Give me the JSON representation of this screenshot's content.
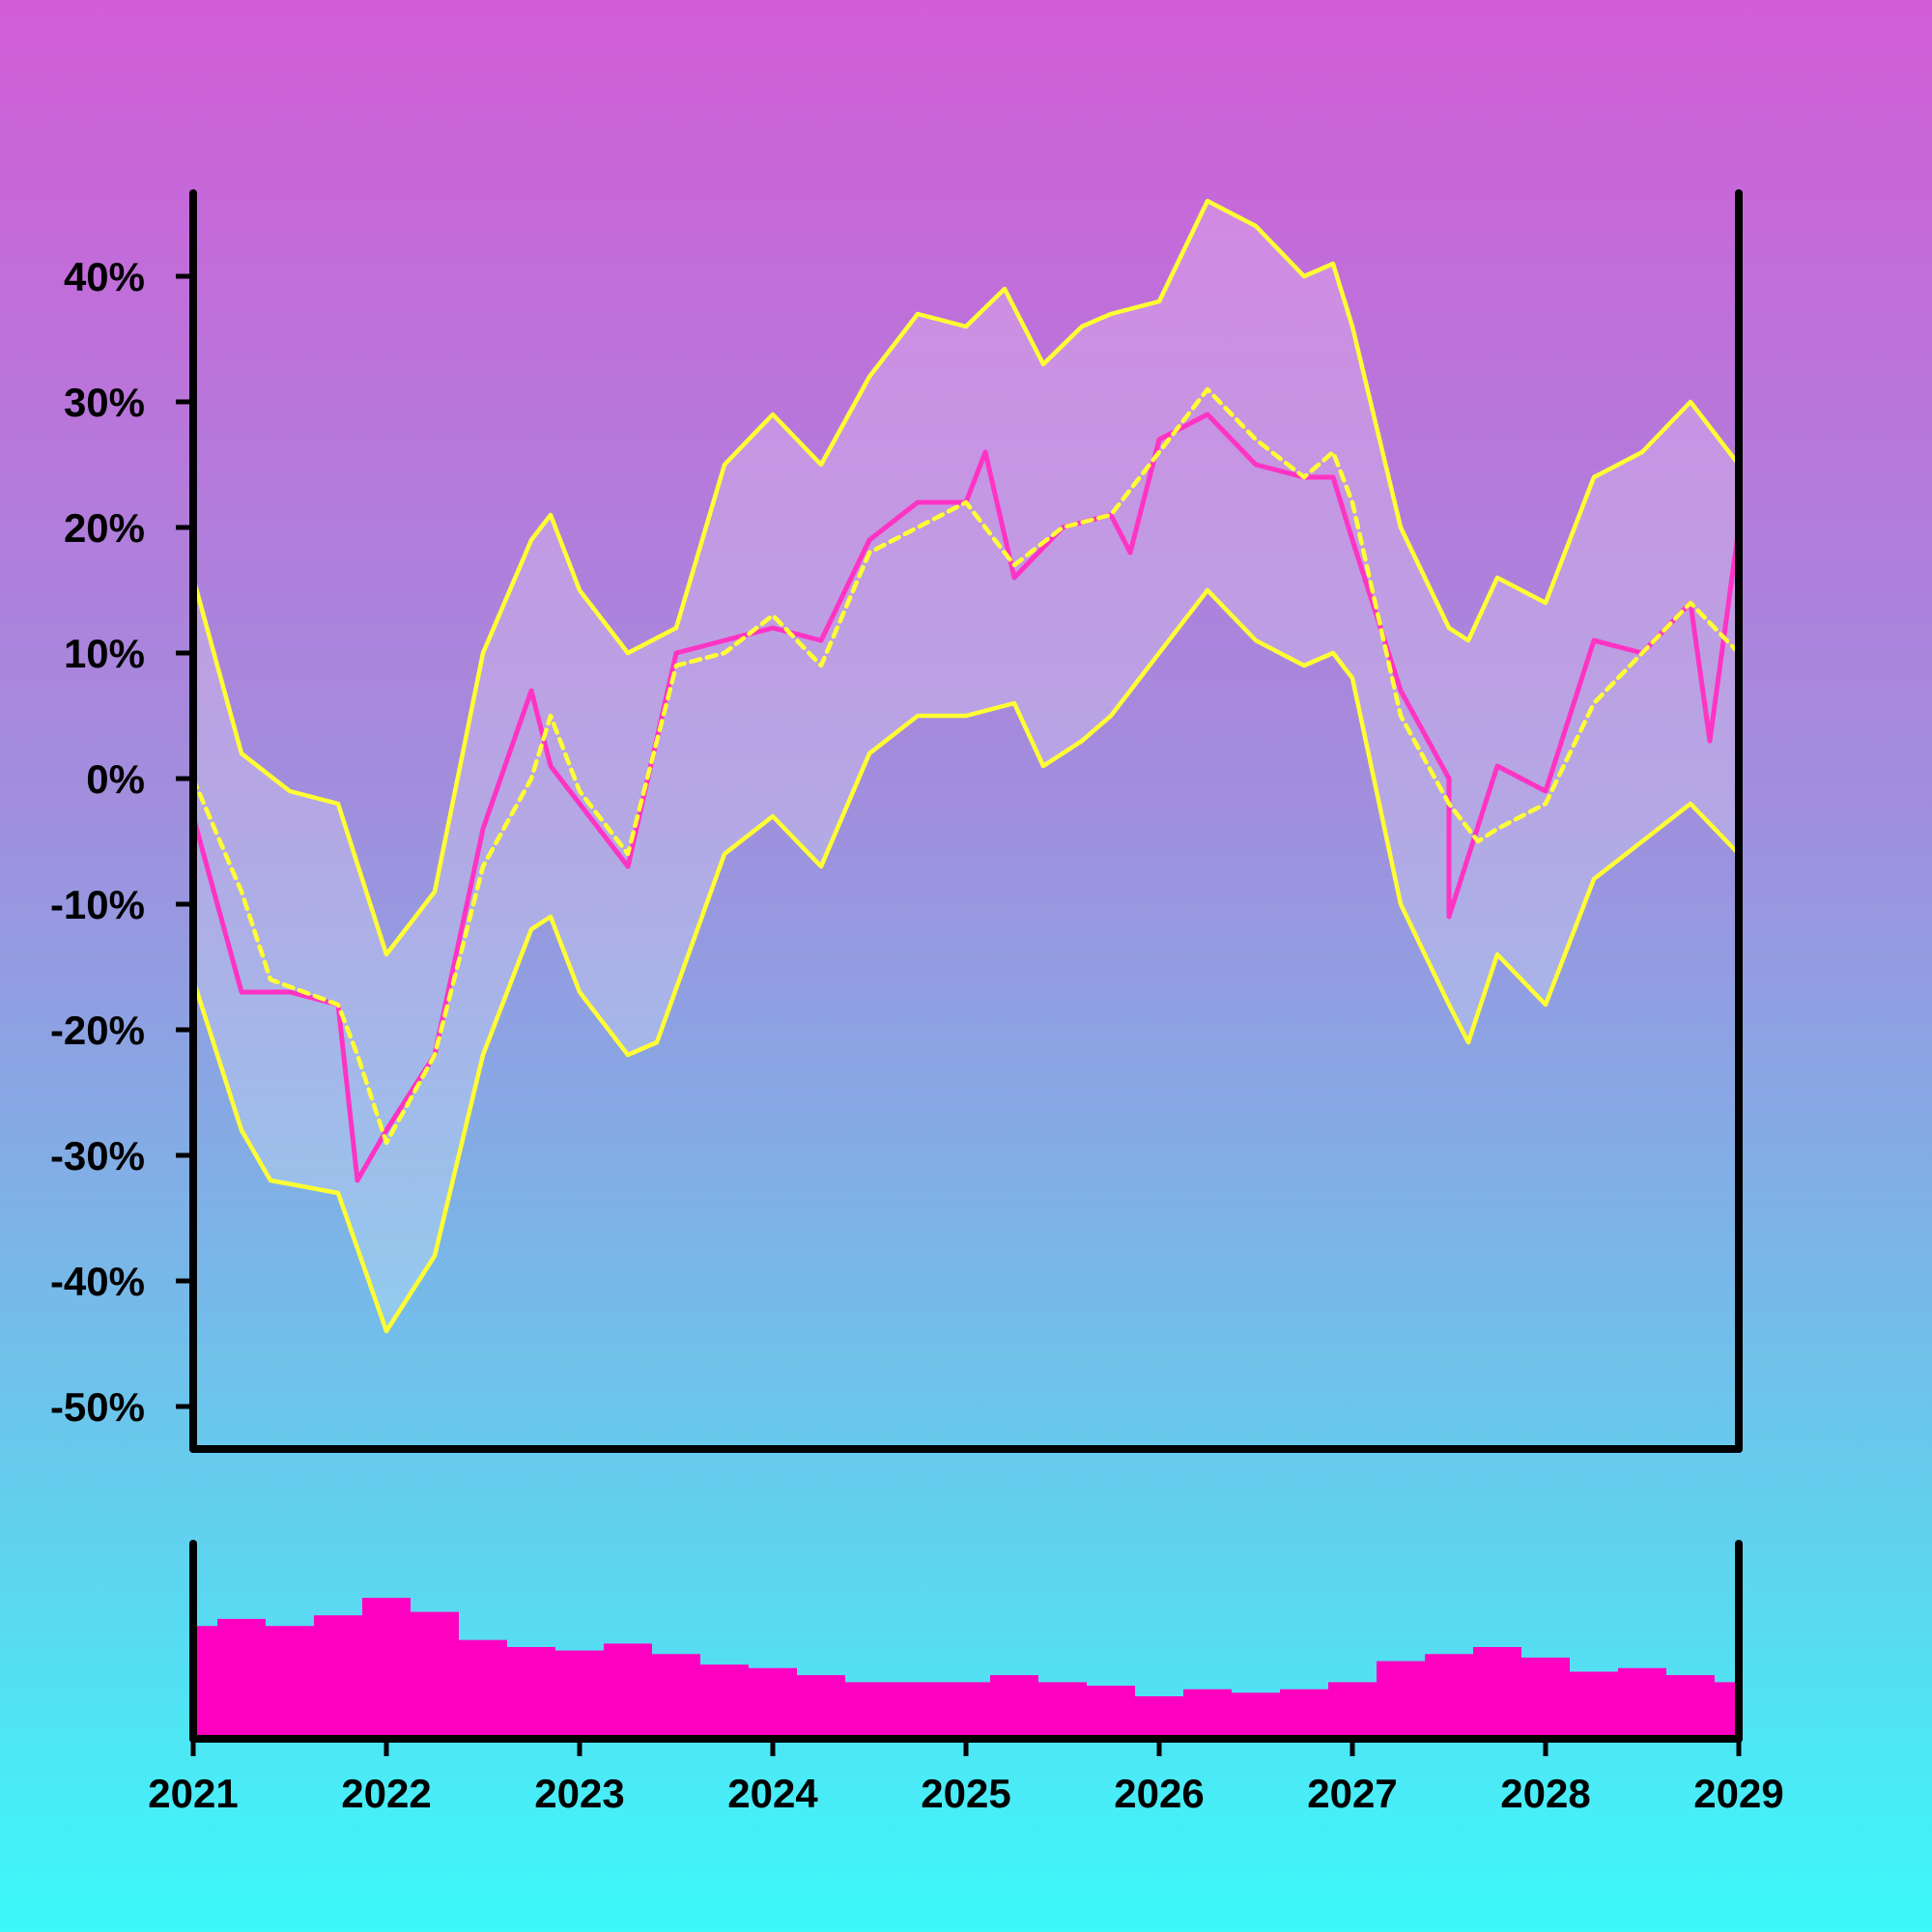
{
  "chart_data": [
    {
      "type": "line",
      "ylim": [
        -55,
        47
      ],
      "yticks": [
        -50,
        -40,
        -30,
        -20,
        -10,
        0,
        10,
        20,
        30,
        40
      ],
      "ytick_labels": [
        "-50%",
        "-40%",
        "-30%",
        "-20%",
        "-10%",
        "0%",
        "10%",
        "20%",
        "30%",
        "40%"
      ],
      "xlim": [
        2021,
        2029
      ],
      "grid": false,
      "legend": "none",
      "colors": {
        "price": "#ff33c4",
        "bands": "#ffff33",
        "band_fill": "#ffffff"
      },
      "series": [
        {
          "role": "price",
          "style": "solid",
          "x": [
            2021.0,
            2021.25,
            2021.5,
            2021.75,
            2021.85,
            2022.0,
            2022.25,
            2022.5,
            2022.75,
            2022.85,
            2023.0,
            2023.25,
            2023.5,
            2023.75,
            2024.0,
            2024.25,
            2024.5,
            2024.75,
            2025.0,
            2025.1,
            2025.25,
            2025.5,
            2025.75,
            2025.85,
            2026.0,
            2026.25,
            2026.5,
            2026.75,
            2026.9,
            2027.0,
            2027.25,
            2027.5,
            2027.5,
            2027.75,
            2028.0,
            2028.25,
            2028.5,
            2028.75,
            2028.85,
            2029.0
          ],
          "y": [
            -3,
            -17,
            -17,
            -18,
            -32,
            -28,
            -22,
            -4,
            7,
            1,
            -2,
            -7,
            10,
            11,
            12,
            11,
            19,
            22,
            22,
            26,
            16,
            20,
            21,
            18,
            27,
            29,
            25,
            24,
            24,
            19,
            7,
            0,
            -11,
            1,
            -1,
            11,
            10,
            14,
            3,
            20
          ]
        },
        {
          "role": "moving-average",
          "style": "dashed",
          "x": [
            2021.0,
            2021.25,
            2021.4,
            2021.75,
            2021.85,
            2022.0,
            2022.25,
            2022.5,
            2022.75,
            2022.85,
            2023.0,
            2023.25,
            2023.5,
            2023.75,
            2024.0,
            2024.25,
            2024.5,
            2024.75,
            2025.0,
            2025.25,
            2025.5,
            2025.75,
            2026.0,
            2026.25,
            2026.5,
            2026.75,
            2026.9,
            2027.0,
            2027.25,
            2027.5,
            2027.65,
            2027.75,
            2028.0,
            2028.25,
            2028.5,
            2028.75,
            2029.0
          ],
          "y": [
            0,
            -9,
            -16,
            -18,
            -22,
            -29,
            -22,
            -7,
            0,
            5,
            -1,
            -6,
            9,
            10,
            13,
            9,
            18,
            20,
            22,
            17,
            20,
            21,
            26,
            31,
            27,
            24,
            26,
            22,
            5,
            -2,
            -5,
            -4,
            -2,
            6,
            10,
            14,
            10
          ]
        },
        {
          "role": "upper-band",
          "style": "solid",
          "x": [
            2021.0,
            2021.25,
            2021.5,
            2021.75,
            2022.0,
            2022.25,
            2022.5,
            2022.75,
            2022.85,
            2023.0,
            2023.25,
            2023.5,
            2023.75,
            2024.0,
            2024.25,
            2024.5,
            2024.75,
            2025.0,
            2025.2,
            2025.4,
            2025.6,
            2025.75,
            2026.0,
            2026.25,
            2026.5,
            2026.75,
            2026.9,
            2027.0,
            2027.25,
            2027.5,
            2027.6,
            2027.75,
            2028.0,
            2028.25,
            2028.5,
            2028.75,
            2029.0
          ],
          "y": [
            16,
            2,
            -1,
            -2,
            -14,
            -9,
            10,
            19,
            21,
            15,
            10,
            12,
            25,
            29,
            25,
            32,
            37,
            36,
            39,
            33,
            36,
            37,
            38,
            46,
            44,
            40,
            41,
            36,
            20,
            12,
            11,
            16,
            14,
            24,
            26,
            30,
            25
          ]
        },
        {
          "role": "lower-band",
          "style": "solid",
          "x": [
            2021.0,
            2021.25,
            2021.4,
            2021.75,
            2022.0,
            2022.25,
            2022.5,
            2022.75,
            2022.85,
            2023.0,
            2023.25,
            2023.4,
            2023.75,
            2024.0,
            2024.25,
            2024.5,
            2024.75,
            2025.0,
            2025.25,
            2025.4,
            2025.6,
            2025.75,
            2026.0,
            2026.25,
            2026.5,
            2026.75,
            2026.9,
            2027.0,
            2027.25,
            2027.5,
            2027.6,
            2027.75,
            2028.0,
            2028.25,
            2028.5,
            2028.75,
            2029.0
          ],
          "y": [
            -16,
            -28,
            -32,
            -33,
            -44,
            -38,
            -22,
            -12,
            -11,
            -17,
            -22,
            -21,
            -6,
            -3,
            -7,
            2,
            5,
            5,
            6,
            1,
            3,
            5,
            10,
            15,
            11,
            9,
            10,
            8,
            -10,
            -18,
            -21,
            -14,
            -18,
            -8,
            -5,
            -2,
            -6
          ]
        }
      ]
    },
    {
      "type": "bar",
      "xlim": [
        2021,
        2029
      ],
      "xticks": [
        2021,
        2022,
        2023,
        2024,
        2025,
        2026,
        2027,
        2028,
        2029
      ],
      "xtick_labels": [
        "2021",
        "2022",
        "2023",
        "2024",
        "2025",
        "2026",
        "2027",
        "2028",
        "2029"
      ],
      "ylim": [
        0,
        100
      ],
      "color": "#ff00c0",
      "x": [
        2021.0,
        2021.25,
        2021.5,
        2021.75,
        2022.0,
        2022.25,
        2022.5,
        2022.75,
        2023.0,
        2023.25,
        2023.5,
        2023.75,
        2024.0,
        2024.25,
        2024.5,
        2024.75,
        2025.0,
        2025.25,
        2025.5,
        2025.75,
        2026.0,
        2026.25,
        2026.5,
        2026.75,
        2027.0,
        2027.25,
        2027.5,
        2027.75,
        2028.0,
        2028.25,
        2028.5,
        2028.75,
        2029.0
      ],
      "values": [
        62,
        66,
        62,
        68,
        78,
        70,
        54,
        50,
        48,
        52,
        46,
        40,
        38,
        34,
        30,
        30,
        30,
        34,
        30,
        28,
        22,
        26,
        24,
        26,
        30,
        42,
        46,
        50,
        44,
        36,
        38,
        34,
        30
      ]
    }
  ]
}
